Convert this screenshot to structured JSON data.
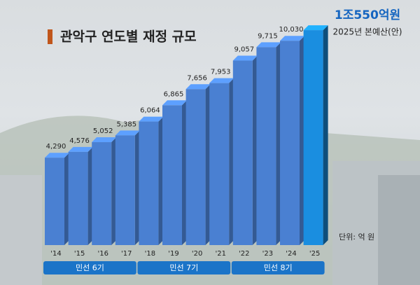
{
  "chart_data": {
    "type": "bar3d",
    "title": "관악구 연도별 재정 규모",
    "highlight_label": "1조550억원",
    "subtitle": "2025년 본예산(안)",
    "unit": "단위: 억 원",
    "categories": [
      "'14",
      "'15",
      "'16",
      "'17",
      "'18",
      "'19",
      "'20",
      "'21",
      "'22",
      "'23",
      "'24",
      "'25"
    ],
    "values": [
      4290,
      4576,
      5052,
      5385,
      6064,
      6865,
      7656,
      7953,
      9057,
      9715,
      10030,
      10550
    ],
    "value_labels": [
      "4,290",
      "4,576",
      "5,052",
      "5,385",
      "6,064",
      "6,865",
      "7,656",
      "7,953",
      "9,057",
      "9,715",
      "10,030",
      null
    ],
    "color": "#4a80d2",
    "highlight_color": "#1a8ee0",
    "ylim": [
      0,
      11000
    ],
    "periods": [
      {
        "label": "민선 6기",
        "count": 4
      },
      {
        "label": "민선 7기",
        "count": 4
      },
      {
        "label": "민선 8기",
        "count": 4
      }
    ]
  }
}
